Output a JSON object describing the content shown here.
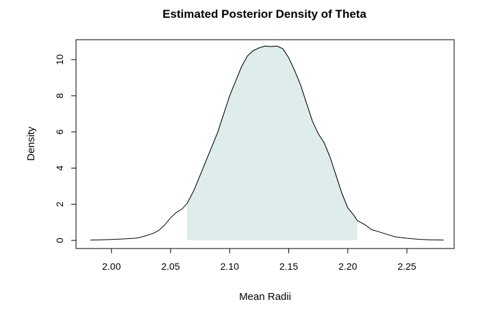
{
  "chart_data": {
    "type": "area",
    "title": "Estimated Posterior Density of Theta",
    "xlabel": "Mean Radii",
    "ylabel": "Density",
    "xlim": [
      1.97,
      2.29
    ],
    "ylim": [
      -0.45,
      11.1
    ],
    "x_ticks": [
      2.0,
      2.05,
      2.1,
      2.15,
      2.2,
      2.25
    ],
    "x_tick_labels": [
      "2.00",
      "2.05",
      "2.10",
      "2.15",
      "2.20",
      "2.25"
    ],
    "y_ticks": [
      0,
      2,
      4,
      6,
      8,
      10
    ],
    "y_tick_labels": [
      "0",
      "2",
      "4",
      "6",
      "8",
      "10"
    ],
    "grid": false,
    "legend": "none",
    "shaded_interval": [
      2.064,
      2.208
    ],
    "colors": {
      "line": "#000000",
      "fill": "#deeceb",
      "fill_edge": "#6f8a86"
    },
    "series": [
      {
        "x": [
          1.982,
          1.99,
          2.0,
          2.01,
          2.02,
          2.025,
          2.03,
          2.035,
          2.04,
          2.045,
          2.05,
          2.055,
          2.06,
          2.064,
          2.07,
          2.075,
          2.08,
          2.085,
          2.09,
          2.095,
          2.1,
          2.105,
          2.11,
          2.115,
          2.12,
          2.125,
          2.13,
          2.135,
          2.14,
          2.145,
          2.15,
          2.155,
          2.16,
          2.165,
          2.17,
          2.175,
          2.18,
          2.185,
          2.19,
          2.195,
          2.2,
          2.205,
          2.208,
          2.215,
          2.22,
          2.23,
          2.24,
          2.25,
          2.26,
          2.27,
          2.281
        ],
        "y": [
          0.02,
          0.03,
          0.05,
          0.08,
          0.12,
          0.18,
          0.28,
          0.38,
          0.55,
          0.85,
          1.25,
          1.55,
          1.75,
          2.05,
          2.8,
          3.6,
          4.4,
          5.2,
          6.0,
          7.0,
          8.0,
          8.8,
          9.6,
          10.2,
          10.5,
          10.65,
          10.75,
          10.72,
          10.75,
          10.6,
          10.1,
          9.4,
          8.6,
          7.6,
          6.6,
          5.9,
          5.4,
          4.6,
          3.6,
          2.6,
          1.8,
          1.4,
          1.1,
          0.85,
          0.6,
          0.4,
          0.2,
          0.12,
          0.06,
          0.03,
          0.02
        ]
      }
    ]
  }
}
